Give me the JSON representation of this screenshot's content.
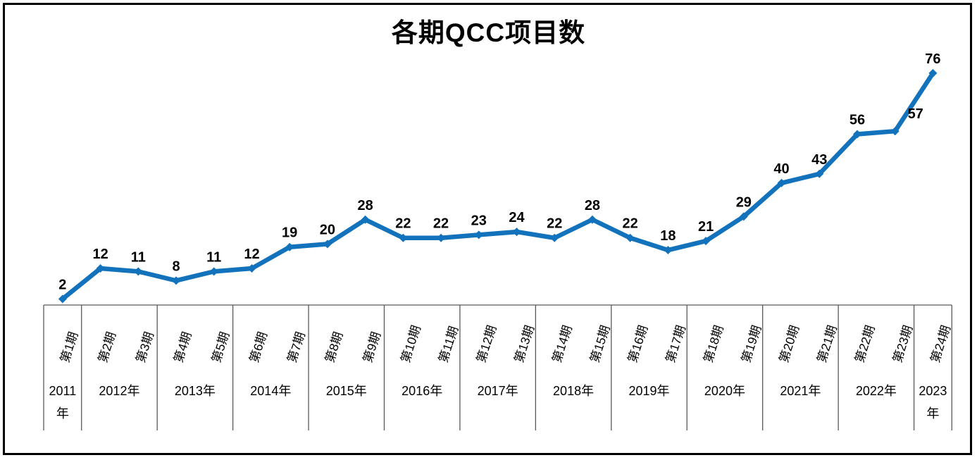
{
  "title": "各期QCC项目数",
  "chart_data": {
    "type": "line",
    "title": "各期QCC项目数",
    "categories": [
      "第1期",
      "第2期",
      "第3期",
      "第4期",
      "第5期",
      "第6期",
      "第7期",
      "第8期",
      "第9期",
      "第10期",
      "第11期",
      "第12期",
      "第13期",
      "第14期",
      "第15期",
      "第16期",
      "第17期",
      "第18期",
      "第19期",
      "第20期",
      "第21期",
      "第22期",
      "第23期",
      "第24期"
    ],
    "values": [
      2,
      12,
      11,
      8,
      11,
      12,
      19,
      20,
      28,
      22,
      22,
      23,
      24,
      22,
      28,
      22,
      18,
      21,
      29,
      40,
      43,
      56,
      57,
      76
    ],
    "year_groups": [
      {
        "label": "2011年",
        "periods": 1
      },
      {
        "label": "2012年",
        "periods": 2
      },
      {
        "label": "2013年",
        "periods": 2
      },
      {
        "label": "2014年",
        "periods": 2
      },
      {
        "label": "2015年",
        "periods": 2
      },
      {
        "label": "2016年",
        "periods": 2
      },
      {
        "label": "2017年",
        "periods": 2
      },
      {
        "label": "2018年",
        "periods": 2
      },
      {
        "label": "2019年",
        "periods": 2
      },
      {
        "label": "2020年",
        "periods": 2
      },
      {
        "label": "2021年",
        "periods": 2
      },
      {
        "label": "2022年",
        "periods": 2
      },
      {
        "label": "2023年",
        "periods": 1
      }
    ],
    "xlabel": "",
    "ylabel": "",
    "ylim": [
      0,
      80
    ],
    "grid": false,
    "legend": "none",
    "data_labels": true,
    "colors": {
      "series": "#1272BC",
      "axis_lines": "#595959",
      "text": "#000000",
      "frame_border": "#000000",
      "background": "#FFFFFF"
    }
  }
}
